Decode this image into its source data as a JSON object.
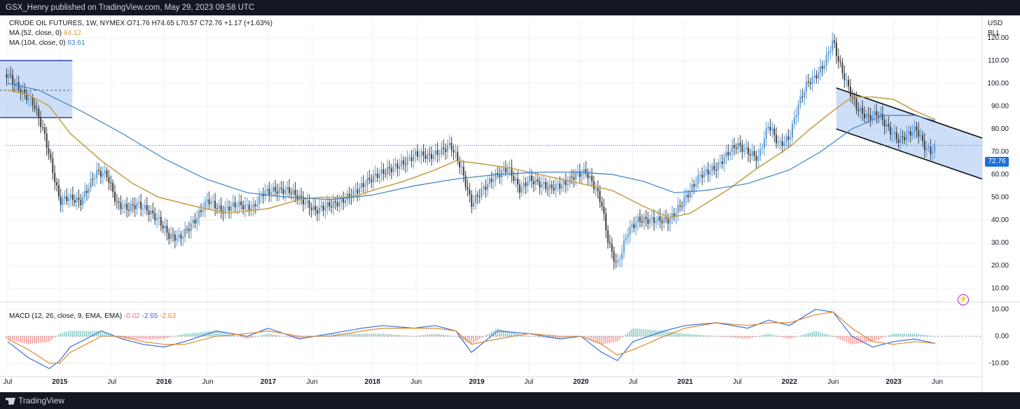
{
  "header": {
    "published": "GSX_Henry published on TradingView.com, May 29, 2023 09:58 UTC"
  },
  "footer": {
    "brand": "TradingView"
  },
  "legend": {
    "symbol": "CRUDE OIL FUTURES, 1W, NYMEX",
    "ohlc": "O71.76  H74.65  L70.57  C72.76  +1.17 (+1.63%)",
    "ma52_label": "MA (52, close, 0)",
    "ma52_value": "84.12",
    "ma104_label": "MA (104, close, 0)",
    "ma104_value": "83.61",
    "macd_label": "MACD (12, 26, close, 9, EMA, EMA)",
    "macd_hist": "-0.02",
    "macd_line": "-2.65",
    "macd_signal": "-2.63"
  },
  "axis": {
    "currency": "USD",
    "unit": "BLL",
    "last_price": "72.76"
  },
  "colors": {
    "up": "#26a69a",
    "down": "#ef5350",
    "candle_up": "#5b9bd5",
    "candle_down": "#3d3d3d",
    "ma52": "#c8a14a",
    "ma104": "#3b82c4",
    "macd": "#3b6fd8",
    "signal": "#e0892c",
    "hist_pos": "#26a69a",
    "hist_neg": "#ef5350",
    "channel_fill": "#bcd3f5",
    "price_line": "#2962ff"
  },
  "icons": {
    "flash": "lightning-icon"
  },
  "chart_data": {
    "type": "line",
    "title": "CRUDE OIL FUTURES, 1W, NYMEX",
    "xlabel": "",
    "ylabel": "USD / BLL",
    "x_ticks": [
      "Jul",
      "2015",
      "Jul",
      "2016",
      "Jun",
      "2017",
      "Jun",
      "2018",
      "Jun",
      "2019",
      "Jul",
      "2020",
      "Jul",
      "2021",
      "Jul",
      "2022",
      "Jun",
      "2023",
      "Jun"
    ],
    "x_tick_dates": [
      2014.5,
      2015.0,
      2015.5,
      2016.0,
      2016.42,
      2017.0,
      2017.42,
      2018.0,
      2018.42,
      2019.0,
      2019.5,
      2020.0,
      2020.5,
      2021.0,
      2021.5,
      2022.0,
      2022.42,
      2023.0,
      2023.42
    ],
    "y_ticks": [
      10,
      20,
      30,
      40,
      50,
      60,
      70,
      80,
      90,
      100,
      110,
      120
    ],
    "y_tick_labels": [
      "10.00",
      "20.00",
      "30.00",
      "40.00",
      "50.00",
      "60.00",
      "70.00",
      "80.00",
      "90.00",
      "100.00",
      "110.00",
      "120.00"
    ],
    "ylim": [
      5,
      128
    ],
    "xlim": [
      2014.48,
      2023.85
    ],
    "series": [
      {
        "name": "CRUDE OIL FUTURES",
        "x": [
          2014.5,
          2014.6,
          2014.75,
          2014.85,
          2014.95,
          2015.0,
          2015.08,
          2015.2,
          2015.35,
          2015.45,
          2015.55,
          2015.65,
          2015.75,
          2015.85,
          2015.95,
          2016.05,
          2016.15,
          2016.3,
          2016.42,
          2016.55,
          2016.7,
          2016.85,
          2016.95,
          2017.05,
          2017.2,
          2017.35,
          2017.45,
          2017.55,
          2017.7,
          2017.85,
          2017.95,
          2018.05,
          2018.15,
          2018.3,
          2018.42,
          2018.55,
          2018.65,
          2018.75,
          2018.85,
          2018.95,
          2019.05,
          2019.15,
          2019.3,
          2019.42,
          2019.5,
          2019.6,
          2019.7,
          2019.85,
          2019.95,
          2020.05,
          2020.15,
          2020.2,
          2020.25,
          2020.3,
          2020.35,
          2020.45,
          2020.55,
          2020.7,
          2020.85,
          2020.95,
          2021.05,
          2021.15,
          2021.3,
          2021.42,
          2021.5,
          2021.6,
          2021.7,
          2021.8,
          2021.9,
          2022.0,
          2022.08,
          2022.17,
          2022.25,
          2022.33,
          2022.42,
          2022.47,
          2022.55,
          2022.65,
          2022.75,
          2022.85,
          2022.95,
          2023.05,
          2023.15,
          2023.22,
          2023.3,
          2023.36,
          2023.41
        ],
        "values": [
          104,
          98,
          91,
          78,
          58,
          48,
          50,
          48,
          61,
          60,
          47,
          45,
          47,
          44,
          40,
          33,
          32,
          40,
          49,
          44,
          47,
          45,
          52,
          53,
          53,
          48,
          44,
          46,
          48,
          53,
          57,
          60,
          62,
          65,
          69,
          68,
          70,
          73,
          63,
          47,
          53,
          58,
          63,
          53,
          58,
          56,
          54,
          56,
          60,
          61,
          53,
          47,
          33,
          25,
          20,
          35,
          40,
          40,
          40,
          46,
          53,
          60,
          63,
          70,
          73,
          70,
          67,
          82,
          73,
          76,
          90,
          100,
          103,
          108,
          119,
          110,
          100,
          89,
          85,
          87,
          80,
          75,
          78,
          80,
          72,
          70,
          72.76
        ]
      },
      {
        "name": "MA (52, close, 0)",
        "x": [
          2014.5,
          2014.7,
          2014.9,
          2015.1,
          2015.4,
          2015.7,
          2015.95,
          2016.3,
          2016.6,
          2017.0,
          2017.3,
          2017.5,
          2017.8,
          2018.0,
          2018.3,
          2018.6,
          2018.8,
          2019.0,
          2019.3,
          2019.6,
          2019.9,
          2020.1,
          2020.3,
          2020.6,
          2020.85,
          2021.05,
          2021.4,
          2021.7,
          2022.0,
          2022.2,
          2022.42,
          2022.6,
          2022.8,
          2023.0,
          2023.2,
          2023.4
        ],
        "values": [
          97,
          95,
          90,
          78,
          66,
          56,
          50,
          46,
          43,
          45,
          49,
          50,
          50,
          53,
          57,
          62,
          66,
          65,
          63,
          60,
          57,
          55,
          53,
          46,
          41,
          43,
          53,
          63,
          72,
          80,
          88,
          94,
          94,
          93,
          88,
          84.12
        ]
      },
      {
        "name": "MA (104, close, 0)",
        "x": [
          2014.5,
          2014.8,
          2015.2,
          2015.6,
          2016.0,
          2016.4,
          2016.8,
          2017.2,
          2017.6,
          2018.0,
          2018.4,
          2018.8,
          2019.2,
          2019.6,
          2020.0,
          2020.3,
          2020.6,
          2020.9,
          2021.2,
          2021.6,
          2022.0,
          2022.3,
          2022.6,
          2022.9,
          2023.2,
          2023.4
        ],
        "values": [
          100,
          97,
          88,
          78,
          67,
          58,
          52,
          50,
          49,
          51,
          55,
          58,
          60,
          61,
          61,
          60,
          57,
          52,
          53,
          56,
          62,
          70,
          80,
          86,
          86,
          83.61
        ]
      }
    ],
    "channel": {
      "upper": {
        "x": [
          2022.45,
          2023.85
        ],
        "y": [
          98,
          76
        ]
      },
      "lower": {
        "x": [
          2022.45,
          2023.85
        ],
        "y": [
          80,
          58
        ]
      }
    },
    "last_price": 72.76
  },
  "macd_data": {
    "type": "line",
    "y_ticks": [
      -10,
      0,
      10
    ],
    "y_tick_labels": [
      "-10.00",
      "0.00",
      "10.00"
    ],
    "ylim": [
      -14,
      12
    ],
    "series": [
      {
        "name": "MACD",
        "x": [
          2014.5,
          2014.7,
          2014.9,
          2015.0,
          2015.1,
          2015.4,
          2015.6,
          2015.8,
          2016.0,
          2016.2,
          2016.5,
          2016.8,
          2017.0,
          2017.3,
          2017.6,
          2017.9,
          2018.1,
          2018.4,
          2018.6,
          2018.8,
          2018.95,
          2019.2,
          2019.5,
          2019.8,
          2020.0,
          2020.2,
          2020.35,
          2020.5,
          2020.8,
          2021.0,
          2021.3,
          2021.6,
          2021.8,
          2022.0,
          2022.25,
          2022.42,
          2022.6,
          2022.8,
          2023.0,
          2023.2,
          2023.4
        ],
        "values": [
          -2,
          -8,
          -12,
          -9,
          -4,
          2,
          -1,
          -3,
          -4,
          -2,
          2,
          0,
          3,
          -1,
          1,
          3,
          4,
          3,
          4,
          2,
          -6,
          2,
          1,
          -1,
          0,
          -6,
          -9,
          -2,
          2,
          4,
          5,
          3,
          6,
          4,
          10,
          9,
          0,
          -4,
          -2,
          -1,
          -2.65
        ]
      },
      {
        "name": "Signal",
        "x": [
          2014.5,
          2014.7,
          2014.9,
          2015.0,
          2015.1,
          2015.4,
          2015.6,
          2015.8,
          2016.0,
          2016.2,
          2016.5,
          2016.8,
          2017.0,
          2017.3,
          2017.6,
          2017.9,
          2018.1,
          2018.4,
          2018.6,
          2018.8,
          2018.95,
          2019.2,
          2019.5,
          2019.8,
          2020.0,
          2020.2,
          2020.35,
          2020.5,
          2020.8,
          2021.0,
          2021.3,
          2021.6,
          2021.8,
          2022.0,
          2022.25,
          2022.42,
          2022.6,
          2022.8,
          2023.0,
          2023.2,
          2023.4
        ],
        "values": [
          -1,
          -5,
          -10,
          -10,
          -6,
          0,
          0,
          -2,
          -3,
          -3,
          0,
          1,
          2,
          0,
          0,
          2,
          3,
          3,
          3,
          2,
          -3,
          -1,
          1,
          0,
          0,
          -3,
          -7,
          -5,
          0,
          3,
          5,
          4,
          5,
          5,
          8,
          9,
          3,
          -2,
          -3,
          -2,
          -2.63
        ]
      }
    ]
  }
}
